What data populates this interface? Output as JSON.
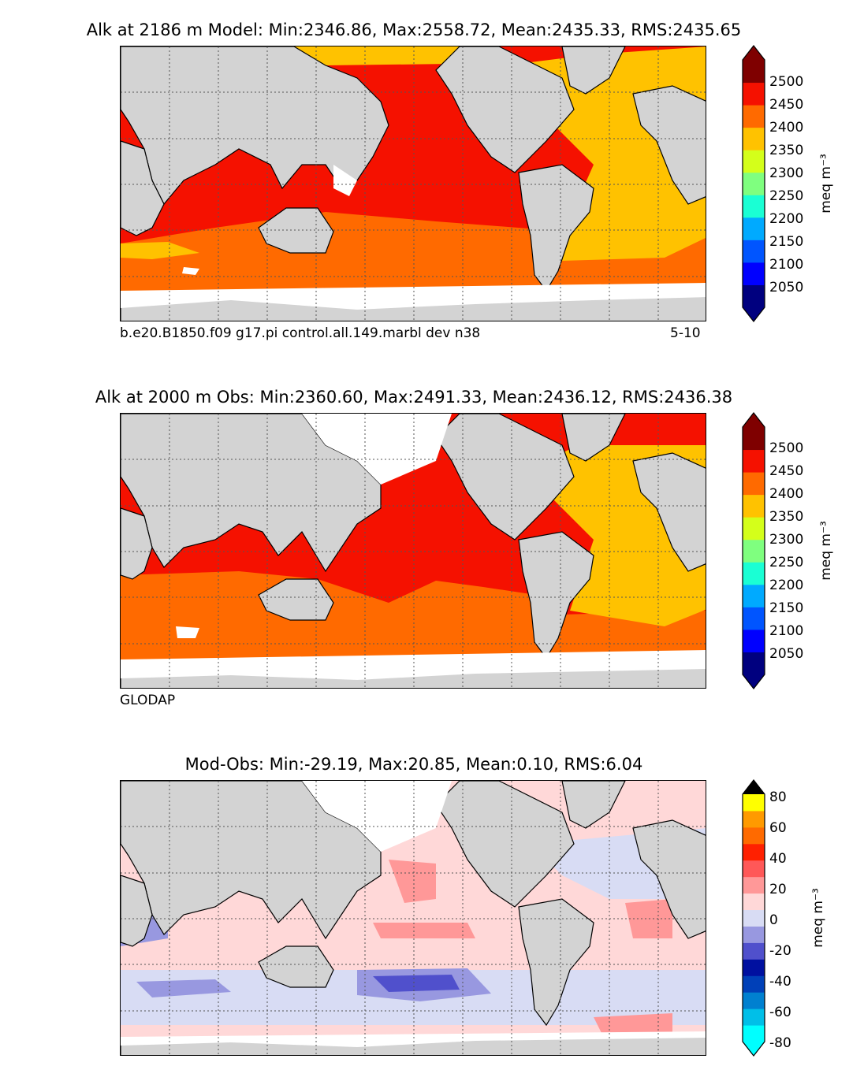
{
  "panels": [
    {
      "title": "Alk at 2186 m Model: Min:2346.86, Max:2558.72, Mean:2435.33, RMS:2435.65",
      "caption_left": "b.e20.B1850.f09 g17.pi control.all.149.marbl dev n38",
      "caption_right": "5-10",
      "colorbar": {
        "colors": [
          "#00007f",
          "#0000ff",
          "#0055ff",
          "#00aaff",
          "#1affd4",
          "#7fff7f",
          "#d4ff1a",
          "#ffc200",
          "#ff6a00",
          "#f51100",
          "#7f0000"
        ],
        "under": "#00007f",
        "over": "#7f0000",
        "ticks": [
          "2050",
          "2100",
          "2150",
          "2200",
          "2250",
          "2300",
          "2350",
          "2400",
          "2450",
          "2500"
        ],
        "unit": "meq m⁻³"
      }
    },
    {
      "title": "Alk at 2000 m Obs: Min:2360.60, Max:2491.33, Mean:2436.12, RMS:2436.38",
      "caption_left": "GLODAP",
      "caption_right": "",
      "colorbar": {
        "colors": [
          "#00007f",
          "#0000ff",
          "#0055ff",
          "#00aaff",
          "#1affd4",
          "#7fff7f",
          "#d4ff1a",
          "#ffc200",
          "#ff6a00",
          "#f51100",
          "#7f0000"
        ],
        "under": "#00007f",
        "over": "#7f0000",
        "ticks": [
          "2050",
          "2100",
          "2150",
          "2200",
          "2250",
          "2300",
          "2350",
          "2400",
          "2450",
          "2500"
        ],
        "unit": "meq m⁻³"
      }
    },
    {
      "title": "Mod-Obs: Min:-29.19, Max:20.85, Mean:0.10, RMS:6.04",
      "caption_left": "",
      "caption_right": "",
      "colorbar": {
        "colors": [
          "#00ffff",
          "#00bfe8",
          "#0080d0",
          "#0040b8",
          "#0010a0",
          "#5050cc",
          "#9898e0",
          "#d8dcf4",
          "#ffd8d8",
          "#ff9898",
          "#ff5858",
          "#ff2000",
          "#ff6a00",
          "#ff9a00",
          "#ffff00"
        ],
        "under": "#00ffff",
        "over": "#000000",
        "ticks": [
          "-80",
          "-60",
          "-40",
          "-20",
          "0",
          "20",
          "40",
          "60",
          "80"
        ],
        "unit": "meq m⁻³"
      }
    }
  ],
  "map_colors": {
    "land": "#d3d3d3",
    "no_data": "#ffffff",
    "panel1_pacific_indian": "#f51100",
    "panel1_atlantic": "#ffc200",
    "panel1_southern": "#ff6a00",
    "panel3_base": "#ffd8d8",
    "panel3_neg": "#d8dcf4",
    "panel3_neg2": "#9898e0",
    "panel3_neg3": "#5050cc",
    "panel3_pos2": "#ff9898"
  }
}
